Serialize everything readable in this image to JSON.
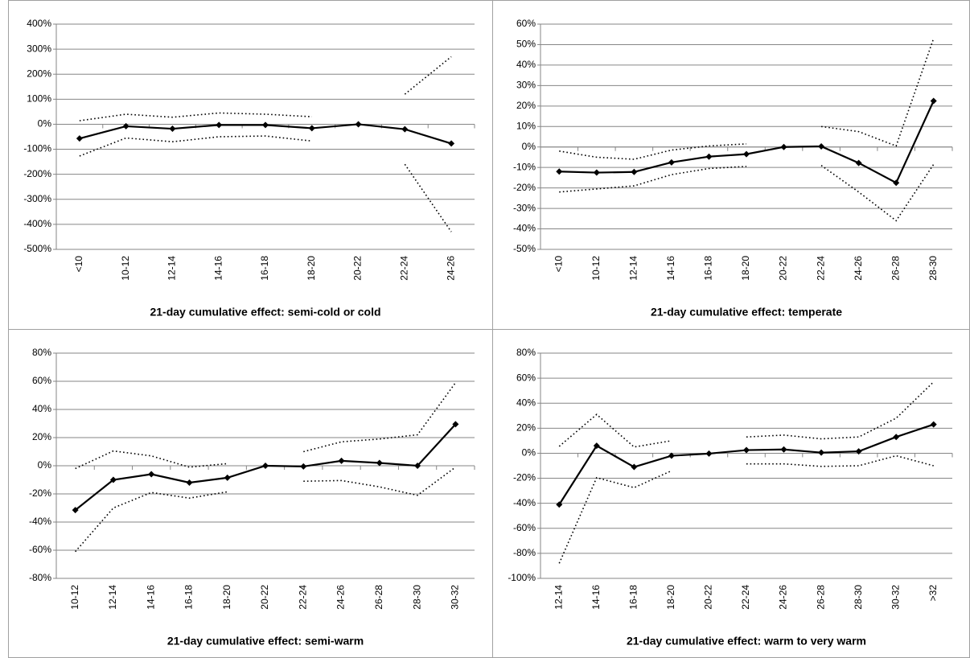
{
  "chart_data": [
    {
      "type": "line",
      "title": "21-day cumulative effect: semi-cold or cold",
      "categories": [
        "<10",
        "10-12",
        "12-14",
        "14-16",
        "16-18",
        "18-20",
        "20-22",
        "22-24",
        "24-26"
      ],
      "series": [
        {
          "color": "#000000",
          "dashed": false,
          "markers": true,
          "values": [
            -57,
            -8,
            -18,
            -3,
            -3,
            -16,
            0,
            -20,
            -77
          ]
        },
        {
          "color": "#000000",
          "dashed": true,
          "markers": false,
          "values": [
            14,
            40,
            28,
            45,
            40,
            30,
            null,
            120,
            270
          ]
        },
        {
          "color": "#000000",
          "dashed": true,
          "markers": false,
          "values": [
            -127,
            -55,
            -70,
            -50,
            -47,
            -67,
            null,
            -160,
            -430
          ]
        }
      ],
      "ylim": [
        -500,
        400
      ],
      "yticks": [
        {
          "value": -500,
          "label": "-500%"
        },
        {
          "value": -400,
          "label": "-400%"
        },
        {
          "value": -300,
          "label": "-300%"
        },
        {
          "value": -200,
          "label": "-200%"
        },
        {
          "value": -100,
          "label": "-100%"
        },
        {
          "value": 0,
          "label": "0%"
        },
        {
          "value": 100,
          "label": "100%"
        },
        {
          "value": 200,
          "label": "200%"
        },
        {
          "value": 300,
          "label": "300%"
        },
        {
          "value": 400,
          "label": "400%"
        }
      ],
      "grid": true
    },
    {
      "type": "line",
      "title": "21-day cumulative effect: temperate",
      "categories": [
        "<10",
        "10-12",
        "12-14",
        "14-16",
        "16-18",
        "18-20",
        "20-22",
        "22-24",
        "24-26",
        "26-28",
        "28-30"
      ],
      "series": [
        {
          "color": "#000000",
          "dashed": false,
          "markers": true,
          "values": [
            -12,
            -12.5,
            -12.2,
            -7.5,
            -4.7,
            -3.5,
            0,
            0.3,
            -7.8,
            -17.5,
            22.5
          ]
        },
        {
          "color": "#000000",
          "dashed": true,
          "markers": false,
          "values": [
            -2,
            -5,
            -6,
            -1.5,
            0.5,
            1.5,
            null,
            10,
            7.5,
            0.5,
            53
          ]
        },
        {
          "color": "#000000",
          "dashed": true,
          "markers": false,
          "values": [
            -22,
            -20.5,
            -19,
            -13.5,
            -10.5,
            -9.5,
            null,
            -9,
            -22,
            -36,
            -8.5
          ]
        }
      ],
      "ylim": [
        -50,
        60
      ],
      "yticks": [
        {
          "value": -50,
          "label": "-50%"
        },
        {
          "value": -40,
          "label": "-40%"
        },
        {
          "value": -30,
          "label": "-30%"
        },
        {
          "value": -20,
          "label": "-20%"
        },
        {
          "value": -10,
          "label": "-10%"
        },
        {
          "value": 0,
          "label": "0%"
        },
        {
          "value": 10,
          "label": "10%"
        },
        {
          "value": 20,
          "label": "20%"
        },
        {
          "value": 30,
          "label": "30%"
        },
        {
          "value": 40,
          "label": "40%"
        },
        {
          "value": 50,
          "label": "50%"
        },
        {
          "value": 60,
          "label": "60%"
        }
      ],
      "grid": true
    },
    {
      "type": "line",
      "title": "21-day cumulative effect: semi-warm",
      "categories": [
        "10-12",
        "12-14",
        "14-16",
        "16-18",
        "18-20",
        "20-22",
        "22-24",
        "24-26",
        "26-28",
        "28-30",
        "30-32"
      ],
      "series": [
        {
          "color": "#000000",
          "dashed": false,
          "markers": true,
          "values": [
            -31.5,
            -10,
            -6,
            -12,
            -8.5,
            0,
            -0.5,
            3.5,
            2,
            0,
            29.5
          ]
        },
        {
          "color": "#000000",
          "dashed": true,
          "markers": false,
          "values": [
            -2,
            10.5,
            7,
            -1,
            1.5,
            null,
            10,
            17,
            19,
            22,
            59
          ]
        },
        {
          "color": "#000000",
          "dashed": true,
          "markers": false,
          "values": [
            -61,
            -30,
            -19,
            -23,
            -18.5,
            null,
            -11,
            -10.5,
            -15,
            -21,
            -1
          ]
        }
      ],
      "ylim": [
        -80,
        80
      ],
      "yticks": [
        {
          "value": -80,
          "label": "-80%"
        },
        {
          "value": -60,
          "label": "-60%"
        },
        {
          "value": -40,
          "label": "-40%"
        },
        {
          "value": -20,
          "label": "-20%"
        },
        {
          "value": 0,
          "label": "0%"
        },
        {
          "value": 20,
          "label": "20%"
        },
        {
          "value": 40,
          "label": "40%"
        },
        {
          "value": 60,
          "label": "60%"
        },
        {
          "value": 80,
          "label": "80%"
        }
      ],
      "grid": true
    },
    {
      "type": "line",
      "title": "21-day cumulative effect: warm to very warm",
      "categories": [
        "12-14",
        "14-16",
        "16-18",
        "18-20",
        "20-22",
        "22-24",
        "24-26",
        "26-28",
        "28-30",
        "30-32",
        ">32"
      ],
      "series": [
        {
          "color": "#000000",
          "dashed": false,
          "markers": true,
          "values": [
            -41,
            6,
            -11,
            -2,
            -0.3,
            2.5,
            3,
            0.5,
            1.5,
            13,
            23
          ]
        },
        {
          "color": "#000000",
          "dashed": true,
          "markers": false,
          "values": [
            5.5,
            31,
            5,
            10,
            null,
            13,
            14.5,
            11.5,
            13,
            28,
            57
          ]
        },
        {
          "color": "#000000",
          "dashed": true,
          "markers": false,
          "values": [
            -88,
            -19.5,
            -27.5,
            -14,
            null,
            -8.5,
            -8.5,
            -10.5,
            -10,
            -2,
            -10
          ]
        }
      ],
      "ylim": [
        -100,
        80
      ],
      "yticks": [
        {
          "value": -100,
          "label": "-100%"
        },
        {
          "value": -80,
          "label": "-80%"
        },
        {
          "value": -60,
          "label": "-60%"
        },
        {
          "value": -40,
          "label": "-40%"
        },
        {
          "value": -20,
          "label": "-20%"
        },
        {
          "value": 0,
          "label": "0%"
        },
        {
          "value": 20,
          "label": "20%"
        },
        {
          "value": 40,
          "label": "40%"
        },
        {
          "value": 60,
          "label": "60%"
        },
        {
          "value": 80,
          "label": "80%"
        }
      ],
      "grid": true
    }
  ]
}
